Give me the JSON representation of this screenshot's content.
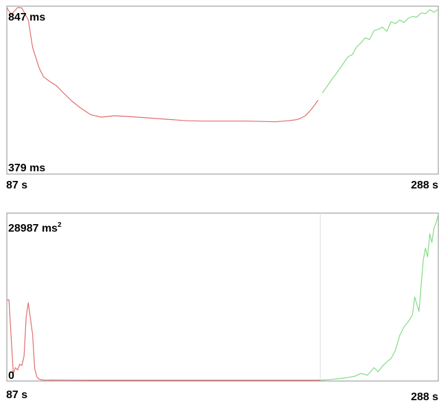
{
  "chart_data": [
    {
      "type": "line",
      "title": "",
      "xlabel": "",
      "ylabel": "",
      "x_start_label": "87 s",
      "x_end_label": "288 s",
      "y_max_label": "847 ms",
      "y_min_label": "379 ms",
      "xlim": [
        87,
        288
      ],
      "ylim": [
        379,
        847
      ],
      "grid": false,
      "legend": "none",
      "colors": {
        "first_segment": "#e26a6a",
        "second_segment": "#7fdc7f",
        "frame": "#8c8c8c"
      },
      "series": [
        {
          "x": [
            87,
            89,
            92,
            94,
            97,
            99,
            102,
            104,
            107,
            110,
            113,
            117,
            121,
            126,
            131,
            137,
            143,
            150,
            157,
            164,
            171,
            178,
            185,
            192,
            199,
            206,
            212,
            218,
            222,
            224,
            226,
            228,
            230,
            232,
            234,
            236,
            238,
            240,
            242,
            244,
            246,
            248,
            250,
            252,
            254,
            256,
            258,
            260,
            262,
            264,
            266,
            268,
            270,
            272,
            274,
            276,
            278,
            280,
            282,
            284,
            286,
            288
          ],
          "y": [
            845,
            825,
            845,
            844,
            810,
            733,
            676,
            651,
            637,
            626,
            607,
            584,
            564,
            544,
            537,
            541,
            539,
            536,
            533,
            530,
            527,
            526,
            526,
            526,
            526,
            525,
            524,
            527,
            530,
            534,
            541,
            553,
            568,
            585,
            605,
            622,
            640,
            656,
            672,
            690,
            707,
            713,
            735,
            746,
            760,
            755,
            780,
            784,
            790,
            778,
            805,
            800,
            810,
            803,
            815,
            820,
            818,
            830,
            828,
            839,
            832,
            840
          ]
        }
      ]
    },
    {
      "type": "line",
      "title": "",
      "xlabel": "",
      "ylabel": "",
      "x_start_label": "87 s",
      "x_end_label": "288 s",
      "y_max_label": "28987 ms",
      "y_max_unit_superscript": "2",
      "y_min_label": "0",
      "xlim": [
        87,
        288
      ],
      "ylim": [
        0,
        28987
      ],
      "grid": false,
      "legend": "none",
      "colors": {
        "first_segment": "#e26a6a",
        "second_segment": "#7fdc7f",
        "frame": "#8c8c8c",
        "divider": "#dcdcdc"
      },
      "divider_x": 233,
      "series": [
        {
          "x": [
            87,
            88,
            90,
            91,
            92,
            93,
            94,
            95,
            96,
            97,
            99,
            100,
            101,
            102,
            103,
            104,
            106,
            108,
            112,
            120,
            130,
            150,
            180,
            210,
            233,
            238,
            243,
            246,
            249,
            252,
            255,
            258,
            260,
            262,
            264,
            266,
            268,
            270,
            272,
            274,
            275,
            276,
            277,
            279,
            280,
            281,
            282,
            283,
            284,
            285,
            286,
            287,
            288
          ],
          "y": [
            14000,
            14000,
            1200,
            2200,
            1800,
            2800,
            2600,
            4200,
            11000,
            13500,
            8000,
            2000,
            600,
            200,
            120,
            50,
            30,
            50,
            30,
            20,
            15,
            10,
            10,
            10,
            10,
            150,
            350,
            500,
            700,
            1200,
            900,
            2200,
            1500,
            2500,
            3200,
            3800,
            5200,
            7800,
            9300,
            10200,
            10800,
            11500,
            14500,
            12000,
            16500,
            21000,
            23000,
            21500,
            25500,
            24000,
            26500,
            27500,
            28800
          ]
        }
      ]
    }
  ]
}
